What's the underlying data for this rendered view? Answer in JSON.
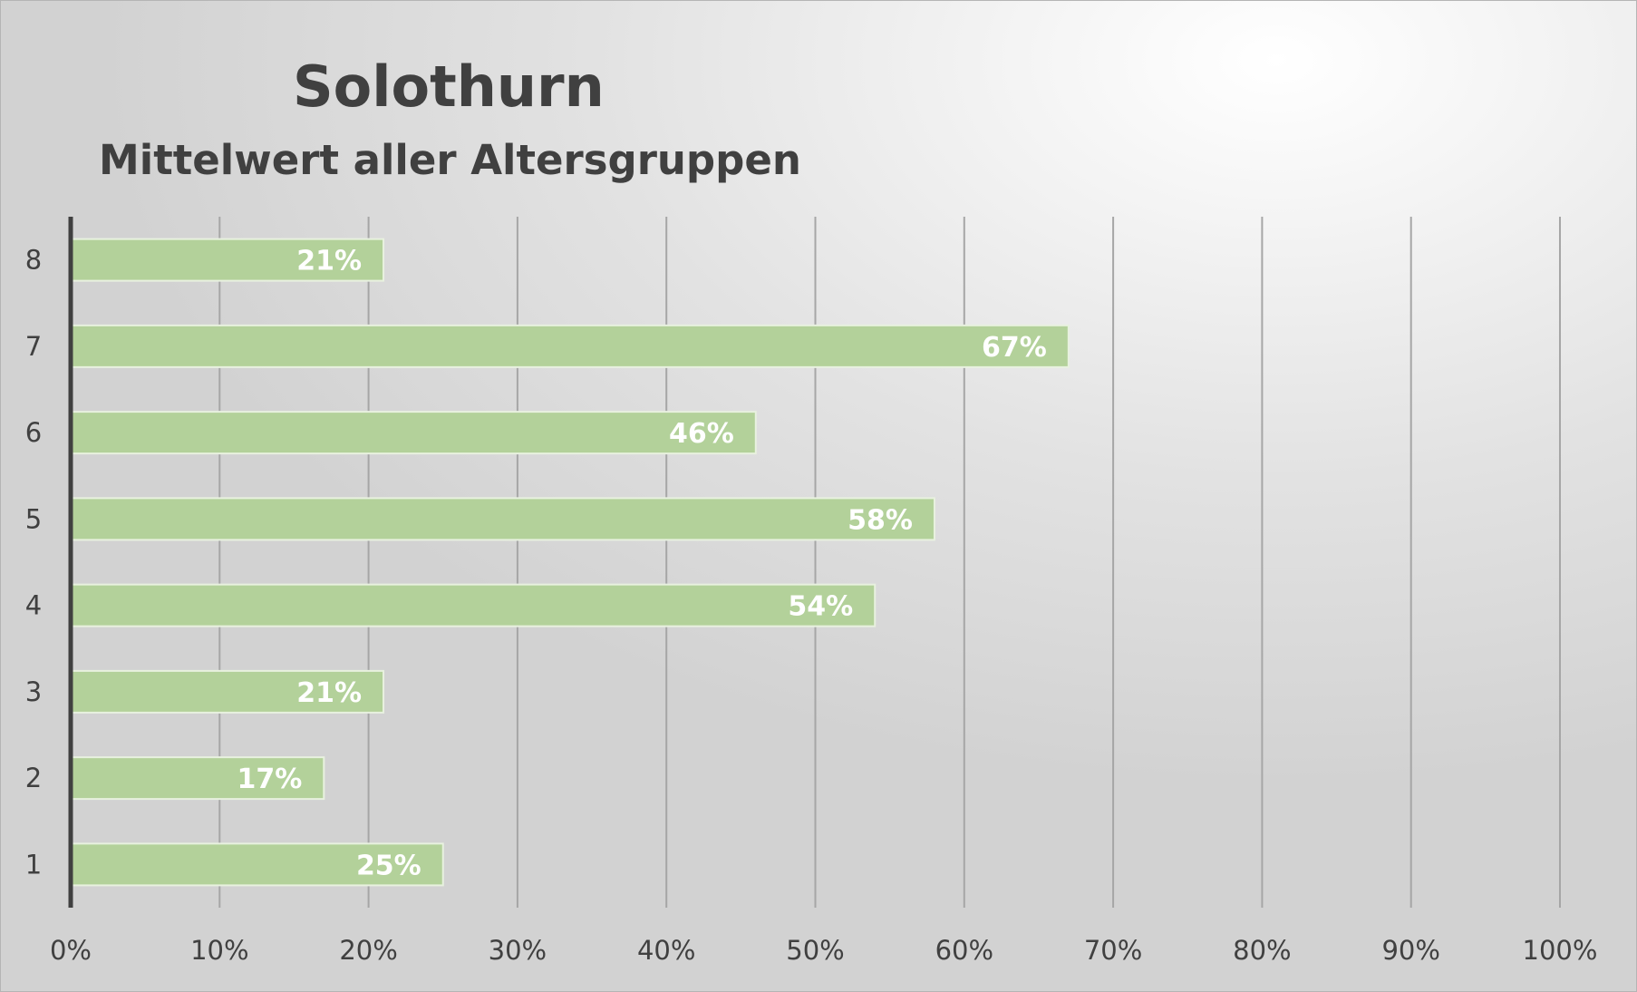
{
  "chart_data": {
    "type": "bar",
    "orientation": "horizontal",
    "title": "Solothurn",
    "subtitle": "Mittelwert aller Altersgruppen",
    "categories": [
      "1",
      "2",
      "3",
      "4",
      "5",
      "6",
      "7",
      "8"
    ],
    "values": [
      25,
      17,
      21,
      54,
      58,
      46,
      67,
      21
    ],
    "data_labels": [
      "25%",
      "17%",
      "21%",
      "54%",
      "58%",
      "46%",
      "67%",
      "21%"
    ],
    "x_ticks": [
      "0%",
      "10%",
      "20%",
      "30%",
      "40%",
      "50%",
      "60%",
      "70%",
      "80%",
      "90%",
      "100%"
    ],
    "xlim": [
      0,
      100
    ],
    "grid": "vertical",
    "legend": "none",
    "bar_color": "#b3d19a",
    "bar_border_color": "#e8f1df",
    "gridline_color": "#a6a6a6",
    "axis_color": "#404040"
  }
}
